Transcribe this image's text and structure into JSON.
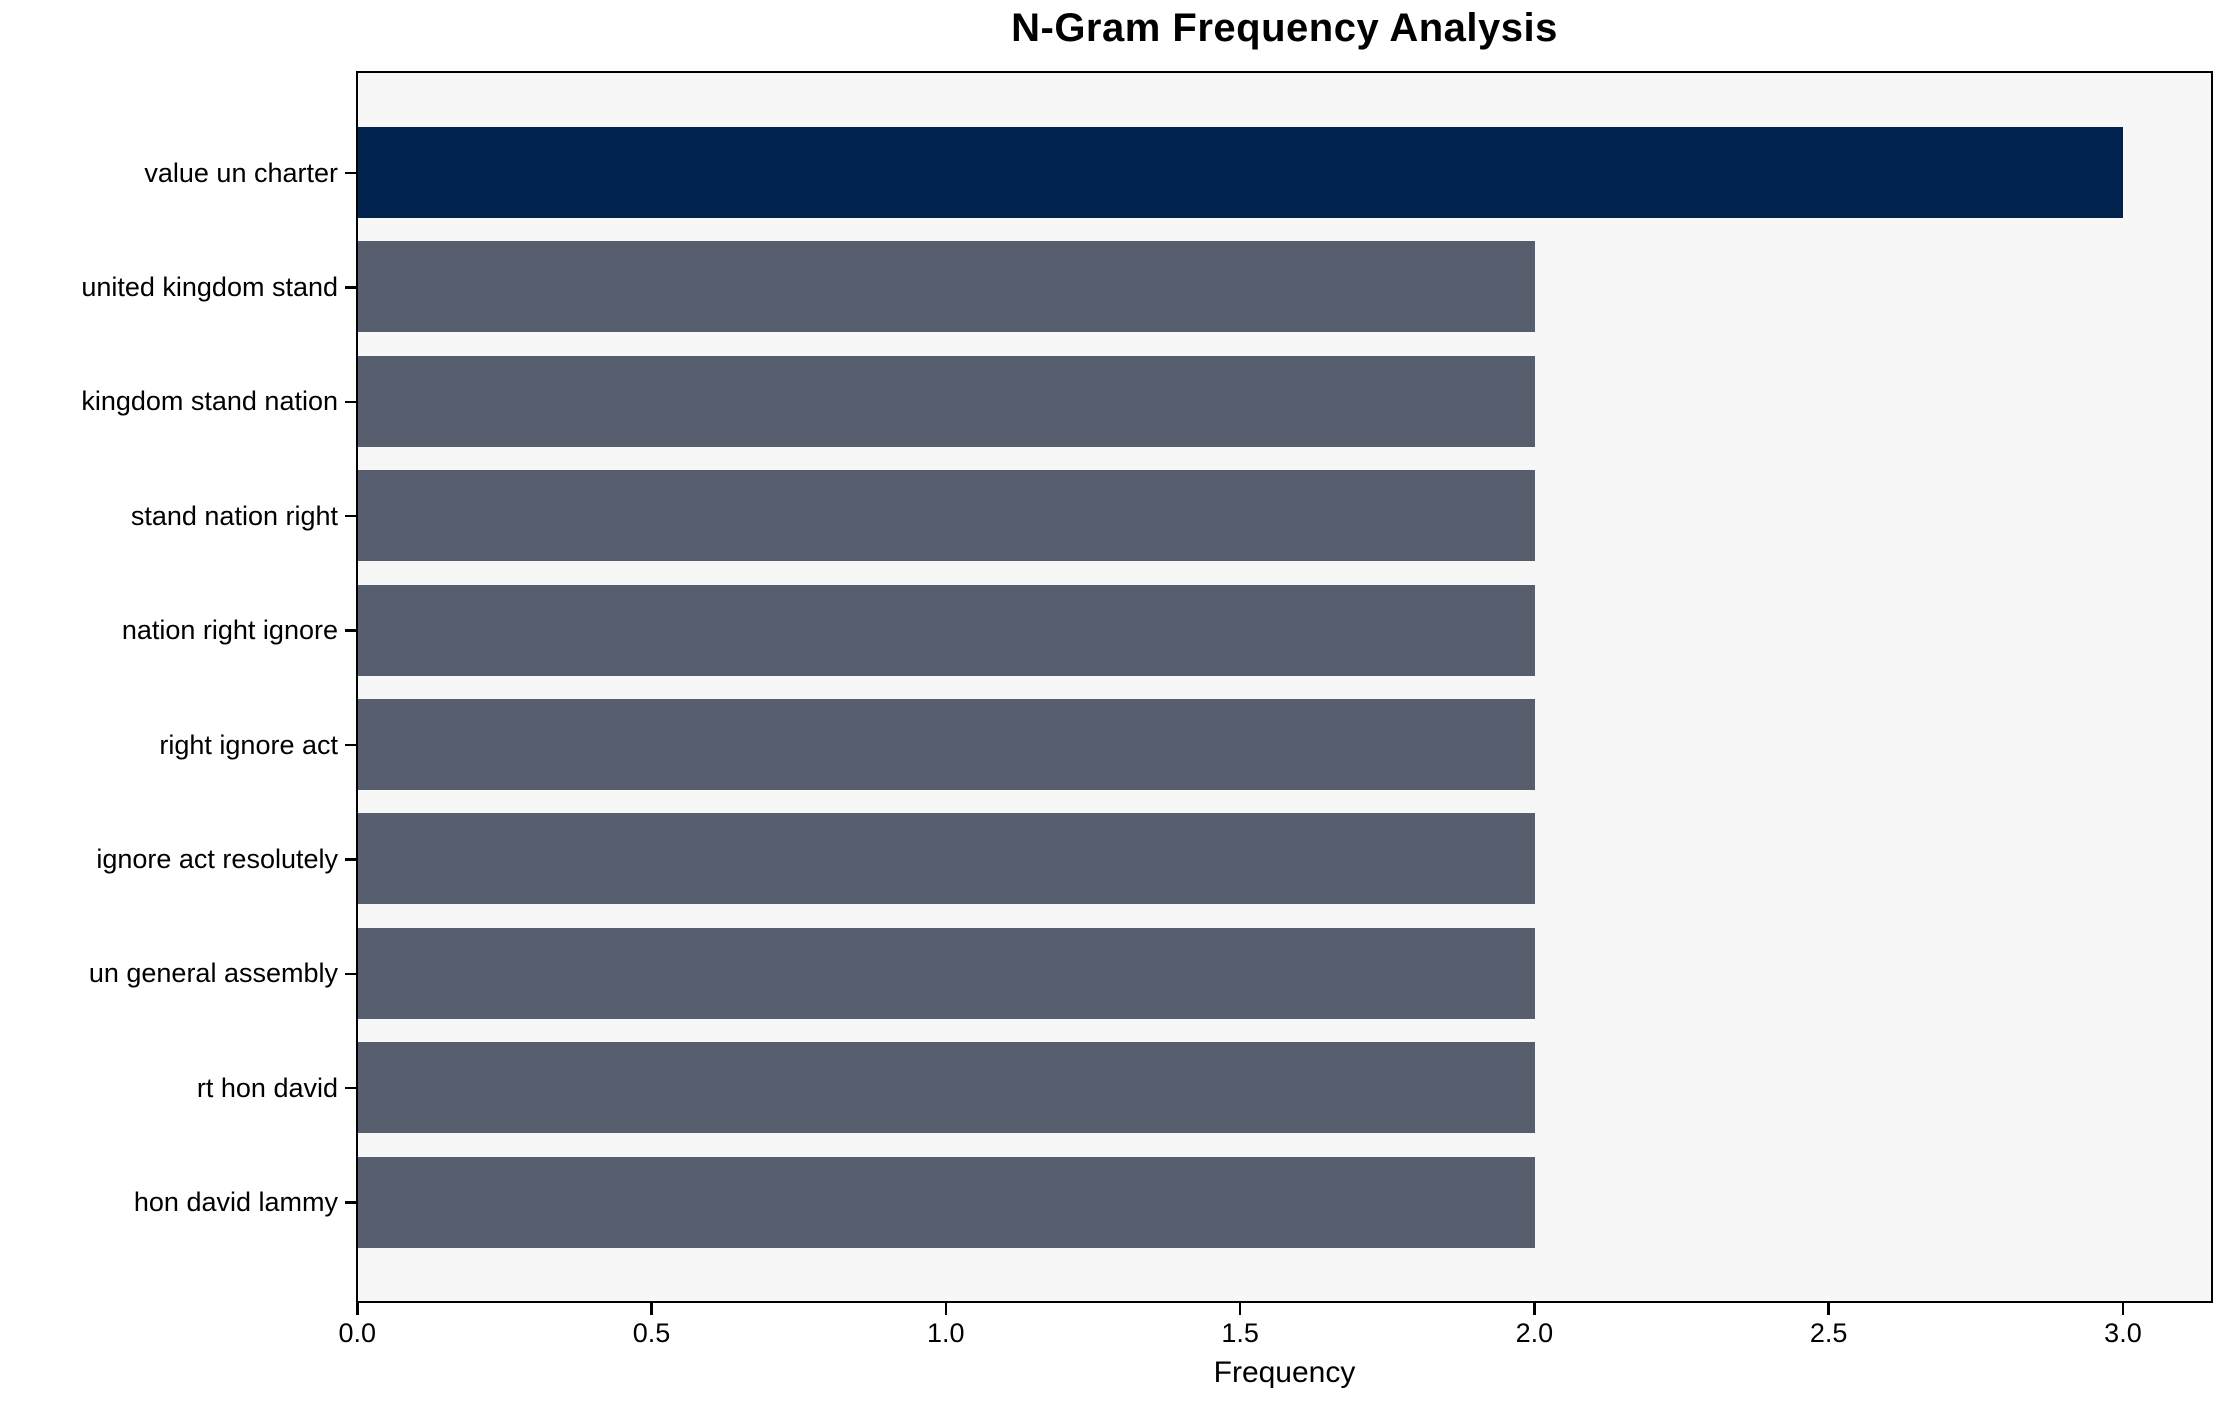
{
  "chart_data": {
    "type": "bar",
    "orientation": "horizontal",
    "title": "N-Gram Frequency Analysis",
    "xlabel": "Frequency",
    "ylabel": "",
    "categories": [
      "value un charter",
      "united kingdom stand",
      "kingdom stand nation",
      "stand nation right",
      "nation right ignore",
      "right ignore act",
      "ignore act resolutely",
      "un general assembly",
      "rt hon david",
      "hon david lammy"
    ],
    "values": [
      3,
      2,
      2,
      2,
      2,
      2,
      2,
      2,
      2,
      2
    ],
    "bar_colors": [
      "#02234d",
      "#565d6d",
      "#565d6d",
      "#565d6d",
      "#565d6d",
      "#565d6d",
      "#565d6d",
      "#565d6d",
      "#565d6d",
      "#565d6d"
    ],
    "x_tick_labels": [
      "0.0",
      "0.5",
      "1.0",
      "1.5",
      "2.0",
      "2.5",
      "3.0"
    ],
    "x_tick_values": [
      0,
      0.5,
      1,
      1.5,
      2,
      2.5,
      3
    ],
    "xlim": [
      0,
      3.15
    ],
    "bar_height_fraction": 0.8,
    "grid": false,
    "legend": null,
    "colors": {
      "highlight_bar": "#02234d",
      "default_bar": "#565d6d",
      "plot_background": "#f7f7f8",
      "figure_background": "#ffffff",
      "axis": "#000000",
      "text": "#000000"
    }
  }
}
